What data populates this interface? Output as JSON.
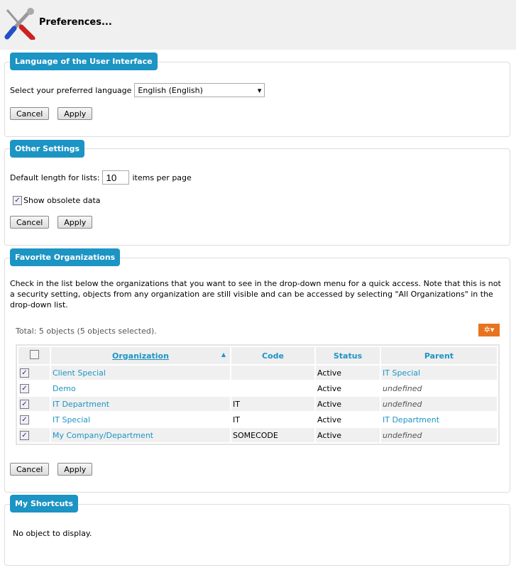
{
  "header": {
    "title": "Preferences...",
    "icon": "tools-icon"
  },
  "language": {
    "legend": "Language of the User Interface",
    "label": "Select your preferred language",
    "selected": "English (English)",
    "cancel": "Cancel",
    "apply": "Apply"
  },
  "other": {
    "legend": "Other Settings",
    "list_label": "Default length for lists:",
    "list_value": "10",
    "list_suffix": "items per page",
    "obsolete_label": "Show obsolete data",
    "obsolete_checked": true,
    "cancel": "Cancel",
    "apply": "Apply"
  },
  "favorites": {
    "legend": "Favorite Organizations",
    "description": "Check in the list below the organizations that you want to see in the drop-down menu for a quick access. Note that this is not a security setting, objects from any organization are still visible and can be accessed by selecting \"All Organizations\" in the drop-down list.",
    "total": "Total: 5 objects (5 objects selected).",
    "columns": [
      "Organization",
      "Code",
      "Status",
      "Parent"
    ],
    "rows": [
      {
        "organization": "Client Special",
        "code": "",
        "status": "Active",
        "parent": "IT Special",
        "parent_link": true
      },
      {
        "organization": "Demo",
        "code": "",
        "status": "Active",
        "parent": "undefined",
        "parent_link": false
      },
      {
        "organization": "IT Department",
        "code": "IT",
        "status": "Active",
        "parent": "undefined",
        "parent_link": false
      },
      {
        "organization": "IT Special",
        "code": "IT",
        "status": "Active",
        "parent": "IT Department",
        "parent_link": true
      },
      {
        "organization": "My Company/Department",
        "code": "SOMECODE",
        "status": "Active",
        "parent": "undefined",
        "parent_link": false
      }
    ],
    "cancel": "Cancel",
    "apply": "Apply",
    "accent": "#1c94c4",
    "tool_color": "#e8731e"
  },
  "shortcuts": {
    "legend": "My Shortcuts",
    "empty": "No object to display."
  }
}
